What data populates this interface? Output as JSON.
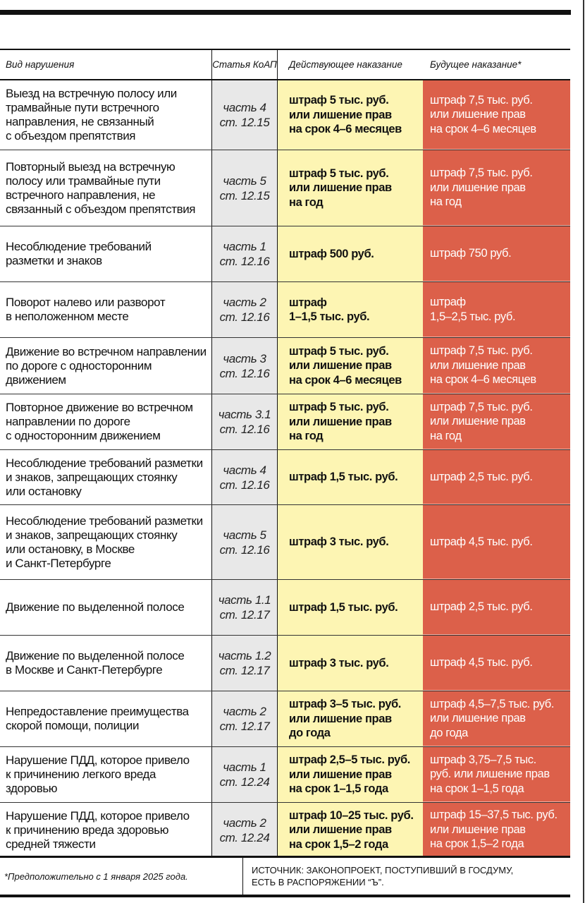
{
  "colors": {
    "current_bg": "#fdf5b3",
    "future_bg": "#dc604a",
    "article_bg": "#e8e8e8"
  },
  "header": {
    "violation": "Вид нарушения",
    "article": "Статья КоАП",
    "current": "Действующее наказание",
    "future": "Будущее наказание*"
  },
  "rows": [
    {
      "violation": "Выезд на встречную полосу или\nтрамвайные пути встречного\nнаправления, не связанный\nс объездом препятствия",
      "article": "часть 4\nст. 12.15",
      "current": "штраф 5 тыс. руб.\nили лишение прав\nна срок 4–6 месяцев",
      "future": "штраф 7,5 тыс. руб.\nили лишение прав\nна срок 4–6 месяцев"
    },
    {
      "violation": "Повторный выезд на встречную\nполосу или трамвайные пути\nвстречного направления, не\nсвязанный с объездом препятствия",
      "article": "часть 5\nст. 12.15",
      "current": "штраф 5 тыс. руб.\nили лишение прав\nна год",
      "future": "штраф 7,5 тыс. руб.\nили лишение прав\nна год"
    },
    {
      "violation": "Несоблюдение требований\nразметки и знаков",
      "article": "часть 1\nст. 12.16",
      "current": "штраф 500 руб.",
      "future": "штраф 750 руб."
    },
    {
      "violation": "Поворот налево или разворот\nв неположенном месте",
      "article": "часть 2\nст. 12.16",
      "current": "штраф\n1–1,5 тыс. руб.",
      "future": "штраф\n1,5–2,5 тыс. руб."
    },
    {
      "violation": "Движение во встречном направлении\nпо дороге с односторонним\nдвижением",
      "article": "часть 3\nст. 12.16",
      "current": "штраф 5 тыс. руб.\nили лишение прав\nна срок 4–6 месяцев",
      "future": "штраф 7,5 тыс. руб.\nили лишение прав\nна срок 4–6 месяцев"
    },
    {
      "violation": "Повторное движение во встречном\nнаправлении по дороге\nс односторонним движением",
      "article": "часть 3.1\nст. 12.16",
      "current": "штраф 5 тыс. руб.\nили лишение прав\nна год",
      "future": "штраф 7,5 тыс. руб.\nили лишение прав\nна год"
    },
    {
      "violation": "Несоблюдение требований разметки\nи знаков, запрещающих стоянку\nили остановку",
      "article": "часть 4\nст. 12.16",
      "current": "штраф 1,5 тыс. руб.",
      "future": "штраф 2,5 тыс. руб."
    },
    {
      "violation": "Несоблюдение требований разметки\nи знаков, запрещающих стоянку\nили остановку, в Москве\nи Санкт-Петербурге",
      "article": "часть 5\nст. 12.16",
      "current": "штраф 3 тыс. руб.",
      "future": "штраф 4,5 тыс. руб."
    },
    {
      "violation": "Движение по выделенной полосе",
      "article": "часть 1.1\nст. 12.17",
      "current": "штраф 1,5 тыс. руб.",
      "future": "штраф 2,5 тыс. руб."
    },
    {
      "violation": "Движение по выделенной полосе\nв Москве и Санкт-Петербурге",
      "article": "часть 1.2\nст. 12.17",
      "current": "штраф 3 тыс. руб.",
      "future": "штраф 4,5 тыс. руб."
    },
    {
      "violation": "Непредоставление преимущества\nскорой помощи, полиции",
      "article": "часть 2\nст. 12.17",
      "current": "штраф 3–5 тыс. руб.\nили лишение прав\nдо года",
      "future": "штраф 4,5–7,5 тыс. руб.\nили лишение прав\nдо года"
    },
    {
      "violation": "Нарушение ПДД, которое привело\nк причинению легкого вреда\nздоровью",
      "article": "часть 1\nст. 12.24",
      "current": "штраф 2,5–5 тыс. руб.\nили лишение прав\nна срок 1–1,5 года",
      "future": "штраф 3,75–7,5 тыс.\nруб. или лишение прав\nна срок 1–1,5 года"
    },
    {
      "violation": "Нарушение ПДД, которое привело\nк причинению вреда здоровью\nсредней тяжести",
      "article": "часть 2\nст. 12.24",
      "current": "штраф 10–25 тыс. руб.\nили лишение прав\nна срок 1,5–2 года",
      "future": "штраф 15–37,5 тыс. руб.\nили лишение прав\nна срок 1,5–2 года"
    }
  ],
  "footer": {
    "note": "*Предположительно с 1 января 2025 года.",
    "source": "ИСТОЧНИК: ЗАКОНОПРОЕКТ, ПОСТУПИВШИЙ В ГОСДУМУ,\nЕСТЬ В РАСПОРЯЖЕНИИ “Ъ”."
  }
}
